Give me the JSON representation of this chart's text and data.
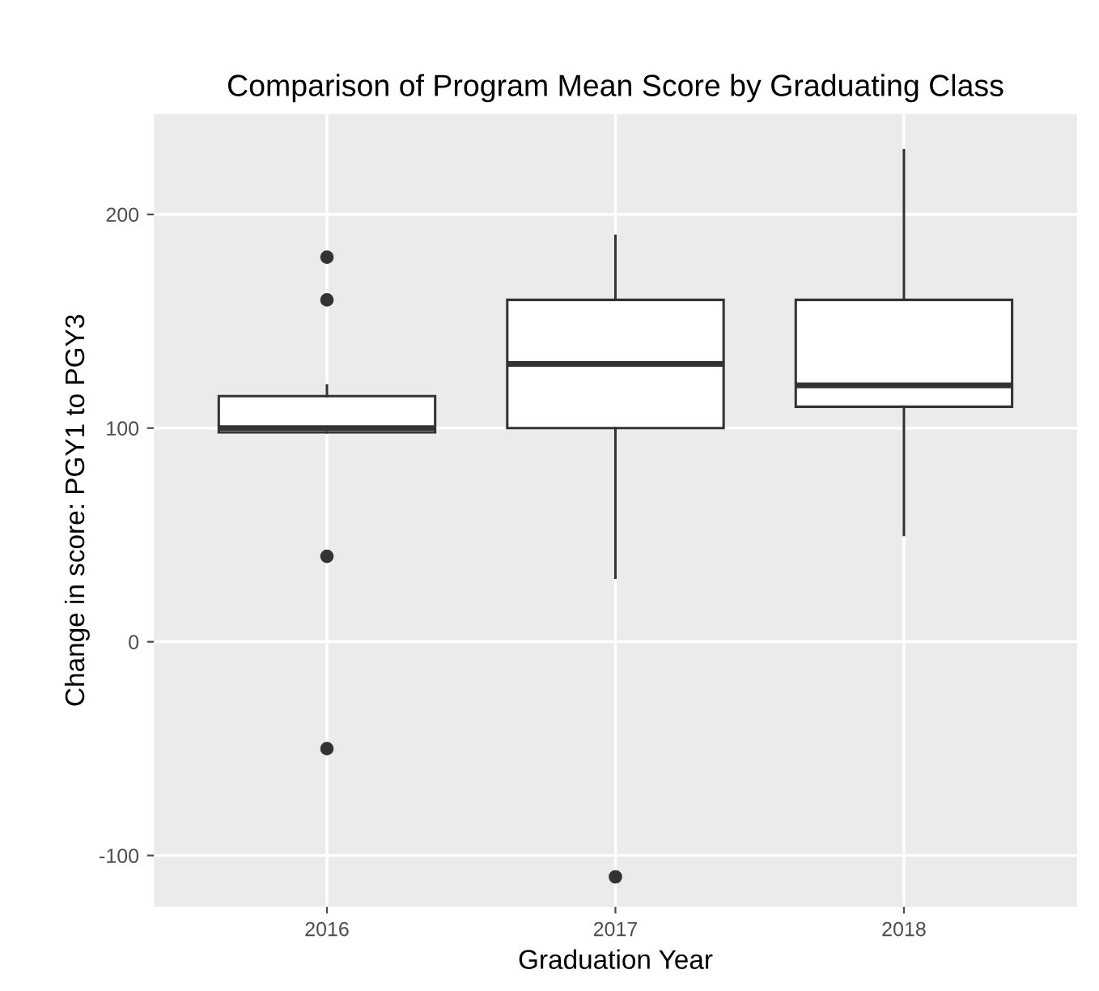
{
  "chart_data": {
    "type": "box",
    "title": "Comparison of Program Mean Score by Graduating Class",
    "xlabel": "Graduation Year",
    "ylabel": "Change in score: PGY1 to PGY3",
    "categories": [
      "2016",
      "2017",
      "2018"
    ],
    "boxes": [
      {
        "low": 98,
        "q1": 98,
        "median": 100,
        "q3": 115,
        "high": 120,
        "outliers": [
          180,
          160,
          40,
          -50
        ]
      },
      {
        "low": 30,
        "q1": 100,
        "median": 130,
        "q3": 160,
        "high": 190,
        "outliers": [
          -110
        ]
      },
      {
        "low": 50,
        "q1": 110,
        "median": 120,
        "q3": 160,
        "high": 230
      }
    ],
    "ylim": [
      -124,
      247
    ],
    "yticks": [
      -100,
      0,
      100,
      200
    ],
    "grid": true
  }
}
